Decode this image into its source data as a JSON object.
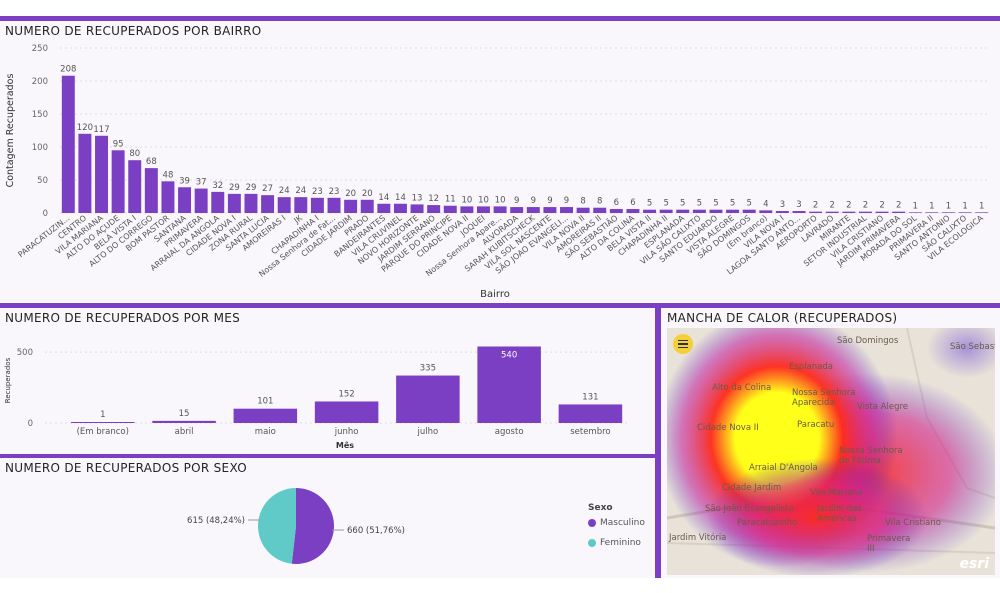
{
  "colors": {
    "accent": "#7b3fc4",
    "bar": "#7b3fc4",
    "masculino": "#7b3fc4",
    "feminino": "#5fcac8"
  },
  "bairro_panel": {
    "title": "NUMERO DE RECUPERADOS POR BAIRRO"
  },
  "mes_panel": {
    "title": "NUMERO DE RECUPERADOS POR MES"
  },
  "sexo_panel": {
    "title": "NUMERO DE RECUPERADOS POR SEXO",
    "legend_title": "Sexo"
  },
  "map_panel": {
    "title": "MANCHA DE CALOR (RECUPERADOS)",
    "labels": [
      "São Domingos",
      "São Sebast",
      "Esplanada",
      "Alto da Colina",
      "Nossa Senhora Aparecida",
      "Vista Alegre",
      "Cidade Nova II",
      "Paracatu",
      "Nossa Senhora de Fátima",
      "Arraial D'Angola",
      "Cidade Jardim",
      "Vila Mariana",
      "São João Evangelista",
      "Jardim das Américas",
      "Paracatuzinho",
      "Vila Cristiano",
      "Primavera III",
      "Jardim Vitória"
    ],
    "icons": [
      "menu-icon",
      "esri-logo"
    ],
    "esri": "esri"
  },
  "chart_data": [
    {
      "type": "bar",
      "title": "NUMERO DE RECUPERADOS POR BAIRRO",
      "xlabel": "Bairro",
      "ylabel": "Contagem Recuperados",
      "ylim": [
        0,
        250
      ],
      "yticks": [
        0,
        50,
        100,
        150,
        200,
        250
      ],
      "grid": true,
      "categories": [
        "PARACATUZIN...",
        "CENTRO",
        "VILA MARIANA",
        "ALTO DO AÇUDE",
        "BELA VISTA I",
        "ALTO DO CORREGO",
        "BOM PASTOR",
        "SANTANA",
        "PRIMAVERA",
        "ARRAIAL DA ANGOLA",
        "CIDADE NOVA I",
        "ZONA RURAL",
        "SANTA LUCIA",
        "AMOREIRAS I",
        "JK",
        "CHAPADINHA I",
        "Nossa Senhora de Fat...",
        "CIDADE JARDIM",
        "PRADO",
        "BANDEIRANTES",
        "VILA CRUVINEL",
        "NOVO HORIZONTE",
        "JARDIM SERRANO",
        "PARQUE DO PRINCIPE",
        "CIDADE NOVA II",
        "JOQUEI",
        "Nossa Senhora Apare...",
        "ALVORADA",
        "SARAH KUBITSCHECK",
        "VILA SOL NASCENTE",
        "SÃO JOAO EVANGELI...",
        "VILA NOVA II",
        "AMOREIRAS II",
        "SÃO SEBASTIÃO",
        "ALTO DA COLINA",
        "BELA VISTA II",
        "CHAPADINHA II",
        "ESPLANADA",
        "VILA SÃO CALIXTO",
        "SANTO EDUARDO",
        "VISTA ALEGRE",
        "SÃO DOMINGOS",
        "(Em branco)",
        "VILA NOVA I",
        "LAGOA SANTO ANTO...",
        "AEROPORTO",
        "LAVRADO",
        "MIRANTE",
        "SETOR INDUSTRIAL",
        "VILA CRISTIANO",
        "JARDIM PRIMAVERA",
        "MORADA DO SOL",
        "PRIMAVERA II",
        "SANTO ANTONIO",
        "SÃO CALIXTO",
        "VILA ECOLOGICA"
      ],
      "values": [
        208,
        120,
        117,
        95,
        80,
        68,
        48,
        39,
        37,
        32,
        29,
        29,
        27,
        24,
        24,
        23,
        23,
        20,
        20,
        14,
        14,
        13,
        12,
        11,
        10,
        10,
        10,
        9,
        9,
        9,
        9,
        8,
        8,
        6,
        6,
        5,
        5,
        5,
        5,
        5,
        5,
        5,
        4,
        3,
        3,
        2,
        2,
        2,
        2,
        2,
        2,
        1,
        1,
        1,
        1,
        1
      ]
    },
    {
      "type": "bar",
      "title": "NUMERO DE RECUPERADOS POR MES",
      "xlabel": "Mês",
      "ylabel": "Recuperados",
      "ylim": [
        0,
        600
      ],
      "yticks": [
        0,
        500
      ],
      "grid": true,
      "categories": [
        "(Em branco)",
        "abril",
        "maio",
        "junho",
        "julho",
        "agosto",
        "setembro"
      ],
      "values": [
        1,
        15,
        101,
        152,
        335,
        540,
        131
      ]
    },
    {
      "type": "pie",
      "title": "NUMERO DE RECUPERADOS POR SEXO",
      "legend": "right",
      "categories": [
        "Masculino",
        "Feminino"
      ],
      "values": [
        660,
        615
      ],
      "data_labels": [
        "660 (51,76%)",
        "615 (48,24%)"
      ]
    }
  ]
}
